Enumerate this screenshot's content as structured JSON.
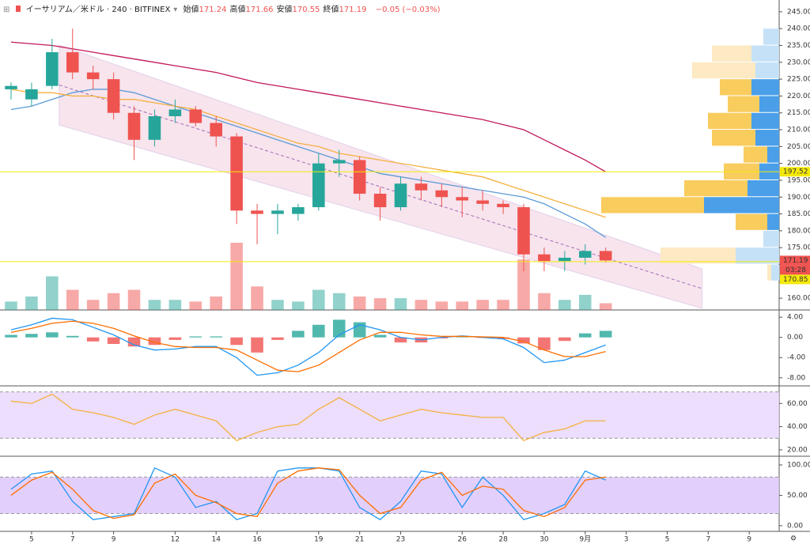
{
  "header": {
    "symbol": "イーサリアム／米ドル · 240 · BITFINEX",
    "ohlc": [
      {
        "label": "始値",
        "value": "171.24"
      },
      {
        "label": "高値",
        "value": "171.66"
      },
      {
        "label": "安値",
        "value": "170.55"
      },
      {
        "label": "終値",
        "value": "171.19"
      }
    ],
    "change": "−0.05 (−0.03%)"
  },
  "chart_data": [
    {
      "type": "candlestick",
      "x": [
        4,
        5,
        6,
        7,
        8,
        9,
        10,
        11,
        12,
        13,
        14,
        15,
        16,
        17,
        18,
        19,
        20,
        21,
        22,
        23,
        24,
        25,
        26,
        27,
        28,
        29,
        30,
        31,
        32,
        33
      ],
      "open": [
        222,
        219,
        223,
        233,
        227,
        225,
        215,
        207,
        214,
        216,
        212,
        208,
        186,
        185,
        185,
        187,
        200,
        201,
        191,
        187,
        194,
        192,
        190,
        189,
        188,
        187,
        173,
        171,
        172,
        174
      ],
      "high": [
        224,
        224,
        237,
        240,
        229,
        227,
        217,
        216,
        219,
        217,
        214,
        209,
        188,
        188,
        188,
        203,
        204,
        202,
        193,
        196,
        196,
        194,
        193,
        192,
        189,
        188,
        175,
        174,
        176,
        175
      ],
      "low": [
        219,
        217,
        222,
        225,
        222,
        213,
        201,
        205,
        212,
        211,
        205,
        182,
        176,
        179,
        183,
        186,
        196,
        189,
        183,
        186,
        189,
        187,
        184,
        186,
        185,
        168,
        168,
        168,
        170,
        170.55
      ],
      "close": [
        223,
        222,
        233,
        227,
        225,
        215,
        207,
        214,
        216,
        212,
        208,
        186,
        185,
        186,
        187,
        200,
        201,
        191,
        187,
        194,
        192,
        190,
        189,
        188,
        187,
        173,
        171,
        172,
        174,
        171.19
      ],
      "volume": [
        5,
        8,
        20,
        12,
        6,
        10,
        12,
        6,
        6,
        5,
        8,
        40,
        14,
        6,
        5,
        12,
        10,
        8,
        7,
        7,
        6,
        5,
        5,
        6,
        6,
        30,
        10,
        6,
        9,
        4
      ],
      "up_color": "#26a69a",
      "down_color": "#ef5350",
      "lines": [
        {
          "color": "#c2185b",
          "values": [
            236,
            235.5,
            235,
            234,
            233,
            232,
            231,
            230,
            229,
            228,
            227,
            225.5,
            224,
            223,
            222,
            221,
            220,
            219,
            218,
            217,
            216,
            215,
            214,
            213,
            211.5,
            210,
            207,
            204,
            201,
            197.5
          ]
        },
        {
          "color": "#5b9bd5",
          "values": [
            216,
            217,
            219,
            221,
            222,
            222,
            221,
            219,
            217,
            215,
            213,
            211,
            209,
            207,
            205,
            203,
            201,
            199,
            197,
            196,
            195,
            194,
            193,
            192,
            191,
            190,
            188,
            185,
            182,
            178
          ]
        },
        {
          "color": "#f5b041",
          "values": [
            222,
            221,
            221,
            220,
            220,
            219,
            219,
            218,
            217,
            216,
            214,
            212,
            210,
            208,
            206,
            205,
            203,
            202,
            201,
            200,
            199,
            198,
            197,
            196,
            194,
            192,
            190,
            188,
            186,
            184
          ]
        }
      ],
      "channel": {
        "x": [
          6.35,
          37.7
        ],
        "upper": [
          235.1,
          168.7
        ],
        "lower": [
          211.4,
          157.0
        ]
      },
      "volume_profile": {
        "bins": [
          165,
          170,
          175,
          180,
          185,
          190,
          195,
          200,
          205,
          210,
          215,
          220,
          225,
          230,
          235,
          240
        ],
        "up": [
          10,
          55,
          20,
          15,
          95,
          40,
          25,
          15,
          30,
          35,
          25,
          35,
          30,
          35,
          20
        ],
        "down": [
          5,
          95,
          0,
          40,
          130,
          80,
          45,
          30,
          55,
          55,
          40,
          40,
          80,
          50,
          0
        ],
        "value_area": [
          180,
          225
        ]
      },
      "price_labels": [
        {
          "value": 197.52,
          "color": "#f5e90a",
          "text_color": "#000000",
          "line": true
        },
        {
          "value": 171.19,
          "color": "#ef5350",
          "text_color": "#ffffff",
          "line": false,
          "countdown": "03:28"
        },
        {
          "value": 170.85,
          "color": "#f5e90a",
          "text_color": "#000000",
          "line": true
        }
      ],
      "xlim": [
        3.46,
        41.46
      ],
      "ylim": [
        156.5,
        248.5
      ],
      "yticks": [
        {
          "value": 160,
          "label": "160.00"
        },
        {
          "value": 165,
          "label": "165.00"
        },
        {
          "value": 170,
          "label": "170.00"
        },
        {
          "value": 175,
          "label": "175.00"
        },
        {
          "value": 180,
          "label": "180.00"
        },
        {
          "value": 185,
          "label": "185.00"
        },
        {
          "value": 190,
          "label": "190.00"
        },
        {
          "value": 195,
          "label": "195.00"
        },
        {
          "value": 200,
          "label": "200.00"
        },
        {
          "value": 205,
          "label": "205.00"
        },
        {
          "value": 210,
          "label": "210.00"
        },
        {
          "value": 215,
          "label": "215.00"
        },
        {
          "value": 220,
          "label": "220.00"
        },
        {
          "value": 225,
          "label": "225.00"
        },
        {
          "value": 230,
          "label": "230.00"
        },
        {
          "value": 235,
          "label": "235.00"
        },
        {
          "value": 240,
          "label": "240.00"
        },
        {
          "value": 245,
          "label": "245.00"
        }
      ]
    },
    {
      "type": "macd",
      "x": [
        4,
        5,
        6,
        7,
        8,
        9,
        10,
        11,
        12,
        13,
        14,
        15,
        16,
        17,
        18,
        19,
        20,
        21,
        22,
        23,
        24,
        25,
        26,
        27,
        28,
        29,
        30,
        31,
        32,
        33
      ],
      "histogram": [
        0.5,
        0.7,
        1,
        0.3,
        -0.8,
        -1.3,
        -1.8,
        -1.5,
        -0.5,
        0.2,
        0.2,
        -1.5,
        -3,
        -0.5,
        1.3,
        2.5,
        3.5,
        3,
        0.5,
        -1,
        -1,
        -0.2,
        0.1,
        -0.1,
        -0.3,
        -1.2,
        -2.5,
        -0.7,
        0.8,
        1.3
      ],
      "up_color": "#26a69a",
      "down_color": "#ef5350",
      "lines": [
        {
          "color": "#2196f3",
          "values": [
            1.5,
            2.5,
            3.8,
            3.5,
            2,
            0.5,
            -1.5,
            -2.5,
            -2.3,
            -1.8,
            -1.8,
            -4,
            -7.5,
            -7,
            -5.5,
            -3,
            0.5,
            2.5,
            1.5,
            0,
            -0.5,
            0,
            0.3,
            0,
            -0.3,
            -2,
            -5,
            -4.5,
            -3,
            -1.5
          ]
        },
        {
          "color": "#ff6d00",
          "values": [
            1,
            1.8,
            2.8,
            3.2,
            2.8,
            1.8,
            0.3,
            -1,
            -1.8,
            -2,
            -2,
            -2.5,
            -4.5,
            -6.5,
            -6.8,
            -5.5,
            -3,
            -0.5,
            1,
            1,
            0.5,
            0.2,
            0.2,
            0.1,
            0,
            -0.8,
            -2.5,
            -3.8,
            -3.8,
            -2.8
          ]
        }
      ],
      "xlim": [
        3.46,
        41.46
      ],
      "ylim": [
        -9.6,
        5.28
      ],
      "yticks": [
        {
          "value": 4,
          "label": "4.00"
        },
        {
          "value": 0,
          "label": "0.00"
        },
        {
          "value": -4,
          "label": "-4.00"
        },
        {
          "value": -8,
          "label": "-8.00"
        }
      ]
    },
    {
      "type": "rsi",
      "x": [
        4,
        5,
        6,
        7,
        8,
        9,
        10,
        11,
        12,
        13,
        14,
        15,
        16,
        17,
        18,
        19,
        20,
        21,
        22,
        23,
        24,
        25,
        26,
        27,
        28,
        29,
        30,
        31,
        32,
        33
      ],
      "band": [
        30,
        70
      ],
      "band_color": "#e7d6fb",
      "lines": [
        {
          "color": "#f5b041",
          "values": [
            62,
            60,
            68,
            55,
            52,
            48,
            42,
            50,
            55,
            50,
            45,
            28,
            35,
            40,
            42,
            55,
            65,
            55,
            45,
            50,
            55,
            52,
            50,
            48,
            48,
            28,
            35,
            38,
            45,
            45
          ]
        }
      ],
      "xlim": [
        3.46,
        41.46
      ],
      "ylim": [
        14.5,
        74.5
      ],
      "yticks": [
        {
          "value": 20,
          "label": "20.00"
        },
        {
          "value": 40,
          "label": "40.00"
        },
        {
          "value": 60,
          "label": "60.00"
        }
      ]
    },
    {
      "type": "stochastic",
      "x": [
        4,
        5,
        6,
        7,
        8,
        9,
        10,
        11,
        12,
        13,
        14,
        15,
        16,
        17,
        18,
        19,
        20,
        21,
        22,
        23,
        24,
        25,
        26,
        27,
        28,
        29,
        30,
        31,
        32,
        33
      ],
      "band": [
        20,
        80
      ],
      "band_color": "#dcc3fa",
      "lines": [
        {
          "color": "#2196f3",
          "values": [
            60,
            85,
            90,
            40,
            10,
            15,
            20,
            95,
            80,
            30,
            40,
            10,
            20,
            90,
            95,
            95,
            90,
            30,
            10,
            40,
            90,
            85,
            30,
            80,
            50,
            10,
            20,
            35,
            90,
            75
          ]
        },
        {
          "color": "#ff6d00",
          "values": [
            50,
            75,
            88,
            60,
            25,
            12,
            18,
            70,
            85,
            50,
            38,
            20,
            15,
            70,
            90,
            95,
            92,
            50,
            20,
            30,
            75,
            88,
            50,
            65,
            60,
            25,
            15,
            30,
            75,
            80
          ]
        }
      ],
      "xlim": [
        3.46,
        41.46
      ],
      "ylim": [
        -9.3,
        113
      ],
      "yticks": [
        {
          "value": 0,
          "label": "0.00"
        },
        {
          "value": 50,
          "label": "50.00"
        },
        {
          "value": 100,
          "label": "100.00"
        }
      ],
      "xticks": [
        5,
        7,
        9,
        12,
        14,
        16,
        19,
        21,
        23,
        26,
        28,
        30,
        {
          "value": 32,
          "label": "9月"
        },
        {
          "value": 34,
          "label": "3"
        },
        {
          "value": 36,
          "label": "5"
        },
        {
          "value": 38,
          "label": "7"
        },
        {
          "value": 40,
          "label": "9"
        }
      ]
    }
  ]
}
